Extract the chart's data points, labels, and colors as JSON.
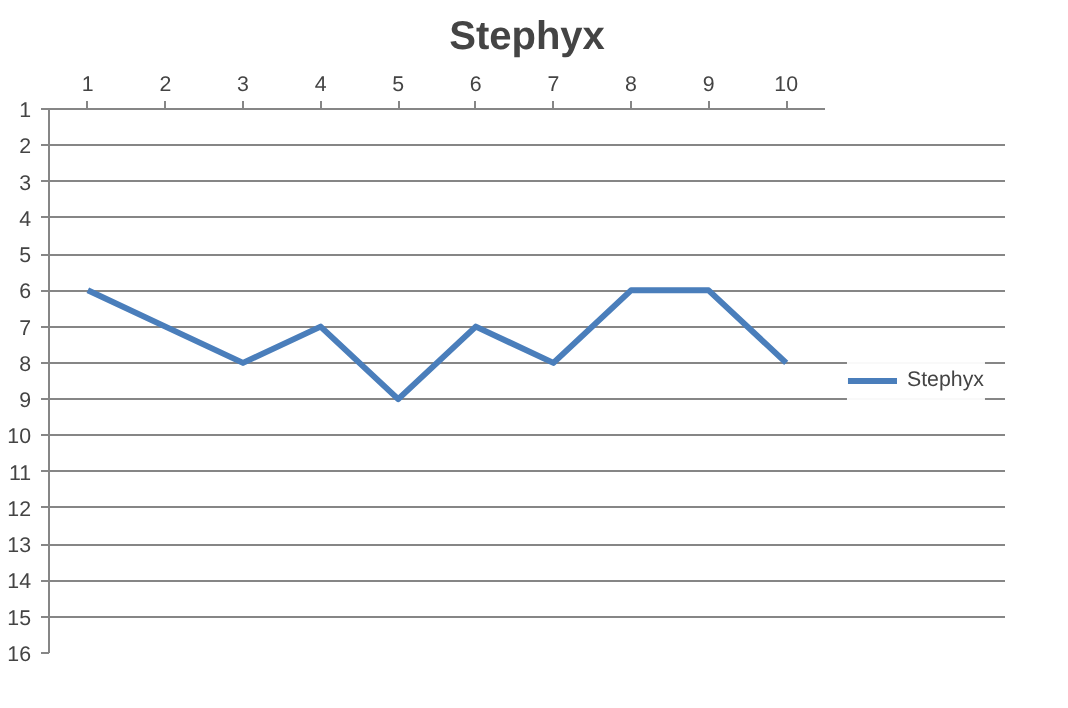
{
  "chart_data": {
    "type": "line",
    "title": "Stephyx",
    "categories": [
      "1",
      "2",
      "3",
      "4",
      "5",
      "6",
      "7",
      "8",
      "9",
      "10"
    ],
    "series": [
      {
        "name": "Stephyx",
        "color": "#4a7ebb",
        "values": [
          6,
          7,
          8,
          7,
          9,
          7,
          8,
          6,
          6,
          8
        ]
      }
    ],
    "ylim": [
      16,
      1
    ],
    "yticks": [
      1,
      2,
      3,
      4,
      5,
      6,
      7,
      8,
      9,
      10,
      11,
      12,
      13,
      14,
      15,
      16
    ],
    "grid": "y",
    "legend": "right",
    "marker": "none",
    "line_style": "solid"
  }
}
